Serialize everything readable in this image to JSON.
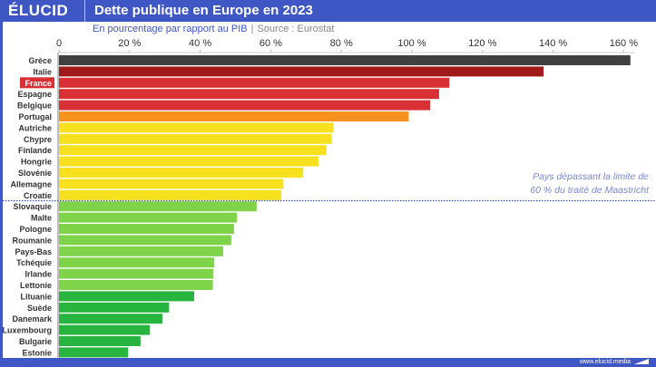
{
  "header": {
    "logo": "ÉLUCID",
    "title": "Dette publique en Europe en 2023"
  },
  "subtitle": {
    "text": "En pourcentage par rapport au PIB",
    "separator": "|",
    "source": "Source : Eurostat"
  },
  "footer": {
    "url": "www.elucid.media"
  },
  "chart_data": {
    "type": "bar",
    "orientation": "horizontal",
    "title": "Dette publique en Europe en 2023",
    "subtitle": "En pourcentage par rapport au PIB | Source : Eurostat",
    "xlabel": "",
    "ylabel": "",
    "xlim": [
      0,
      165
    ],
    "ticks": [
      0,
      20,
      40,
      60,
      80,
      100,
      120,
      140,
      160
    ],
    "tick_labels": [
      "0",
      "20 %",
      "40 %",
      "60 %",
      "80 %",
      "100 %",
      "120 %",
      "140 %",
      "160 %"
    ],
    "highlighted": "France",
    "threshold": {
      "value": 60,
      "label_line1": "Pays dépassant la limite de",
      "label_line2": "60 % du traité de Maastricht"
    },
    "categories": [
      "Grèce",
      "Italie",
      "France",
      "Espagne",
      "Belgique",
      "Portugal",
      "Autriche",
      "Chypre",
      "Finlande",
      "Hongrie",
      "Slovénie",
      "Allemagne",
      "Croatie",
      "Slovaquie",
      "Malte",
      "Pologne",
      "Roumanie",
      "Pays-Bas",
      "Tchéquie",
      "Irlande",
      "Lettonie",
      "Lituanie",
      "Suède",
      "Danemark",
      "Luxembourg",
      "Bulgarie",
      "Estonie"
    ],
    "values": [
      161.9,
      137.3,
      110.6,
      107.7,
      105.2,
      99.1,
      77.8,
      77.3,
      75.8,
      73.5,
      69.2,
      63.6,
      63.0,
      56.0,
      50.4,
      49.6,
      48.8,
      46.5,
      44.0,
      43.7,
      43.6,
      38.3,
      31.2,
      29.3,
      25.7,
      23.1,
      19.6
    ],
    "colors": [
      "#404040",
      "#a01a1a",
      "#d93035",
      "#d93035",
      "#d93035",
      "#f7921e",
      "#f7e01e",
      "#f7e01e",
      "#f7e01e",
      "#f7e01e",
      "#f7e01e",
      "#f7e01e",
      "#f7e01e",
      "#7ed348",
      "#7ed348",
      "#7ed348",
      "#7ed348",
      "#7ed348",
      "#7ed348",
      "#7ed348",
      "#7ed348",
      "#27b540",
      "#27b540",
      "#27b540",
      "#27b540",
      "#27b540",
      "#27b540"
    ],
    "grid": false
  }
}
